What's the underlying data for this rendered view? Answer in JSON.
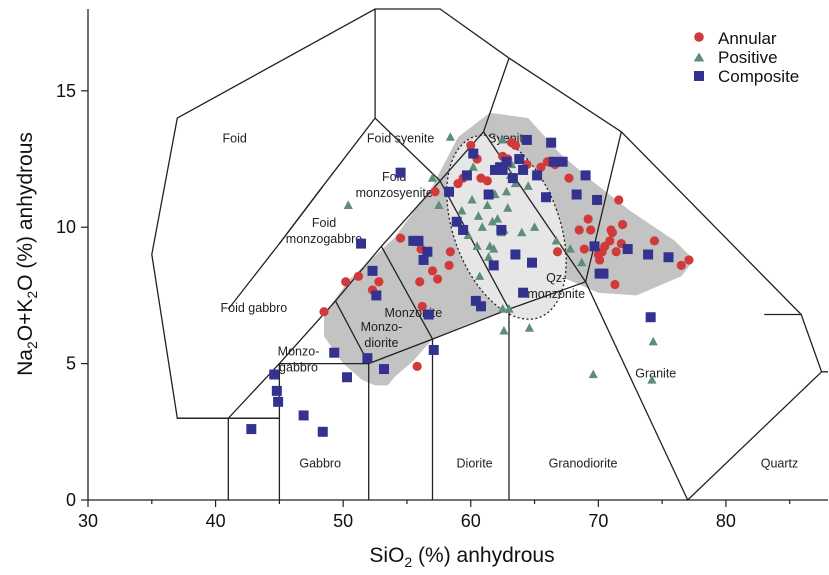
{
  "chart_data": {
    "type": "scatter",
    "xlabel": "SiO2 (%) anhydrous",
    "ylabel": "Na2O+K2O (%) anhydrous",
    "xlim": [
      30,
      88
    ],
    "ylim": [
      0,
      18
    ],
    "x_ticks": [
      "30",
      "40",
      "50",
      "60",
      "70",
      "80"
    ],
    "y_ticks": [
      "0",
      "5",
      "10",
      "15"
    ],
    "x_tick_values": [
      30,
      40,
      50,
      60,
      70,
      80
    ],
    "y_tick_values": [
      0,
      5,
      10,
      15
    ],
    "legend_position": "top-right",
    "colors": {
      "Annular": "#d13a3a",
      "Positive": "#5e8e7a",
      "Composite": "#33338f",
      "envelope": "#c3c3c3",
      "ellipse": "#e6e6e6"
    },
    "field_labels": [
      {
        "lines": [
          "Foid"
        ],
        "x": 41.5,
        "y": 13.1
      },
      {
        "lines": [
          "Foid syenite"
        ],
        "x": 54.5,
        "y": 13.1
      },
      {
        "lines": [
          "Syenite"
        ],
        "x": 63,
        "y": 13.1
      },
      {
        "lines": [
          "Foid",
          "monzosyenite"
        ],
        "x": 54,
        "y": 11.7
      },
      {
        "lines": [
          "Foid",
          "monzogabbro"
        ],
        "x": 48.5,
        "y": 10
      },
      {
        "lines": [
          "Foid gabbro"
        ],
        "x": 43,
        "y": 6.9
      },
      {
        "lines": [
          "Monzo-",
          "diorite"
        ],
        "x": 53,
        "y": 6.2
      },
      {
        "lines": [
          "Monzo-",
          "gabbro"
        ],
        "x": 46.5,
        "y": 5.3
      },
      {
        "lines": [
          "Monzonite"
        ],
        "x": 55.5,
        "y": 6.7
      },
      {
        "lines": [
          "Qz-",
          "monzonite"
        ],
        "x": 66.7,
        "y": 8.0
      },
      {
        "lines": [
          "Granite"
        ],
        "x": 74.5,
        "y": 4.5
      },
      {
        "lines": [
          "Gabbro"
        ],
        "x": 48.2,
        "y": 1.2
      },
      {
        "lines": [
          "Diorite"
        ],
        "x": 60.3,
        "y": 1.2
      },
      {
        "lines": [
          "Granodiorite"
        ],
        "x": 68.8,
        "y": 1.2
      },
      {
        "lines": [
          "Quartz"
        ],
        "x": 84.2,
        "y": 1.2
      }
    ],
    "series": [
      {
        "name": "Annular",
        "marker": "circle",
        "points": [
          [
            48.5,
            6.9
          ],
          [
            50.2,
            8.0
          ],
          [
            51.2,
            8.2
          ],
          [
            52.3,
            7.7
          ],
          [
            52.8,
            8.0
          ],
          [
            54.5,
            9.6
          ],
          [
            56.1,
            9.2
          ],
          [
            56.0,
            8.0
          ],
          [
            56.2,
            7.1
          ],
          [
            55.8,
            4.9
          ],
          [
            57.0,
            8.4
          ],
          [
            57.4,
            8.1
          ],
          [
            57.2,
            11.3
          ],
          [
            58.3,
            8.6
          ],
          [
            58.4,
            9.1
          ],
          [
            59.0,
            11.6
          ],
          [
            59.4,
            11.8
          ],
          [
            60.0,
            13.0
          ],
          [
            60.5,
            12.5
          ],
          [
            60.8,
            11.8
          ],
          [
            61.3,
            11.7
          ],
          [
            62.2,
            12.1
          ],
          [
            62.5,
            12.6
          ],
          [
            62.9,
            12.5
          ],
          [
            63.2,
            13.1
          ],
          [
            63.5,
            13.0
          ],
          [
            64.4,
            12.3
          ],
          [
            65.5,
            12.2
          ],
          [
            66.0,
            12.4
          ],
          [
            66.6,
            12.3
          ],
          [
            67.2,
            12.4
          ],
          [
            67.7,
            11.8
          ],
          [
            68.5,
            9.9
          ],
          [
            68.9,
            9.2
          ],
          [
            69.2,
            10.3
          ],
          [
            69.4,
            9.9
          ],
          [
            70.0,
            9.0
          ],
          [
            70.1,
            8.8
          ],
          [
            70.3,
            9.1
          ],
          [
            70.5,
            9.3
          ],
          [
            70.9,
            9.5
          ],
          [
            71.1,
            9.8
          ],
          [
            71.0,
            9.9
          ],
          [
            71.4,
            9.1
          ],
          [
            71.8,
            9.4
          ],
          [
            71.3,
            7.9
          ],
          [
            71.6,
            11.0
          ],
          [
            71.9,
            10.1
          ],
          [
            74.4,
            9.5
          ],
          [
            76.5,
            8.6
          ],
          [
            77.1,
            8.8
          ],
          [
            66.8,
            9.1
          ]
        ]
      },
      {
        "name": "Positive",
        "marker": "triangle",
        "points": [
          [
            50.4,
            10.8
          ],
          [
            57.0,
            11.8
          ],
          [
            57.5,
            10.8
          ],
          [
            58.4,
            13.3
          ],
          [
            58.8,
            10.2
          ],
          [
            59.3,
            10.6
          ],
          [
            59.8,
            9.7
          ],
          [
            60.1,
            11.0
          ],
          [
            60.6,
            10.4
          ],
          [
            60.5,
            9.3
          ],
          [
            60.9,
            10.0
          ],
          [
            61.3,
            10.8
          ],
          [
            61.5,
            9.3
          ],
          [
            61.7,
            10.2
          ],
          [
            61.8,
            9.2
          ],
          [
            62.1,
            10.3
          ],
          [
            61.9,
            11.2
          ],
          [
            62.4,
            9.8
          ],
          [
            62.8,
            11.3
          ],
          [
            62.6,
            9.9
          ],
          [
            63.1,
            11.9
          ],
          [
            63.5,
            11.6
          ],
          [
            64.0,
            9.8
          ],
          [
            64.5,
            11.5
          ],
          [
            65.0,
            10.0
          ],
          [
            60.7,
            8.2
          ],
          [
            61.4,
            8.9
          ],
          [
            62.5,
            7.0
          ],
          [
            63.0,
            7.0
          ],
          [
            62.6,
            6.2
          ],
          [
            64.6,
            6.3
          ],
          [
            62.5,
            13.2
          ],
          [
            63.2,
            12.3
          ],
          [
            62.9,
            10.7
          ],
          [
            60.2,
            12.2
          ],
          [
            69.6,
            4.6
          ],
          [
            74.2,
            4.4
          ],
          [
            74.3,
            5.8
          ],
          [
            66.7,
            9.5
          ],
          [
            67.8,
            9.2
          ],
          [
            68.7,
            8.7
          ]
        ]
      },
      {
        "name": "Composite",
        "marker": "square",
        "points": [
          [
            42.8,
            2.6
          ],
          [
            44.6,
            4.6
          ],
          [
            44.8,
            4.0
          ],
          [
            44.9,
            3.6
          ],
          [
            46.9,
            3.1
          ],
          [
            48.4,
            2.5
          ],
          [
            49.3,
            5.4
          ],
          [
            50.3,
            4.5
          ],
          [
            51.4,
            9.4
          ],
          [
            51.9,
            5.2
          ],
          [
            52.3,
            8.4
          ],
          [
            52.6,
            7.5
          ],
          [
            53.2,
            4.8
          ],
          [
            54.5,
            12.0
          ],
          [
            55.5,
            9.5
          ],
          [
            55.9,
            9.5
          ],
          [
            56.3,
            8.8
          ],
          [
            56.6,
            9.1
          ],
          [
            56.7,
            6.8
          ],
          [
            57.1,
            5.5
          ],
          [
            58.3,
            11.3
          ],
          [
            58.9,
            10.2
          ],
          [
            59.4,
            9.9
          ],
          [
            59.7,
            11.9
          ],
          [
            60.2,
            12.7
          ],
          [
            60.4,
            7.3
          ],
          [
            60.8,
            7.1
          ],
          [
            61.4,
            11.2
          ],
          [
            61.8,
            8.6
          ],
          [
            61.9,
            12.1
          ],
          [
            62.3,
            12.2
          ],
          [
            62.5,
            12.1
          ],
          [
            62.8,
            12.4
          ],
          [
            63.3,
            11.8
          ],
          [
            63.8,
            12.5
          ],
          [
            64.1,
            12.1
          ],
          [
            64.4,
            13.2
          ],
          [
            64.8,
            8.7
          ],
          [
            65.2,
            11.9
          ],
          [
            65.9,
            11.1
          ],
          [
            66.5,
            12.4
          ],
          [
            67.2,
            12.4
          ],
          [
            66.3,
            13.1
          ],
          [
            68.3,
            11.2
          ],
          [
            69.0,
            11.9
          ],
          [
            69.7,
            9.3
          ],
          [
            69.9,
            11.0
          ],
          [
            70.1,
            8.3
          ],
          [
            70.4,
            8.3
          ],
          [
            72.3,
            9.2
          ],
          [
            73.9,
            9.0
          ],
          [
            75.5,
            8.9
          ],
          [
            74.1,
            6.7
          ],
          [
            64.1,
            7.6
          ],
          [
            63.5,
            9.0
          ],
          [
            62.4,
            9.9
          ]
        ]
      }
    ]
  }
}
